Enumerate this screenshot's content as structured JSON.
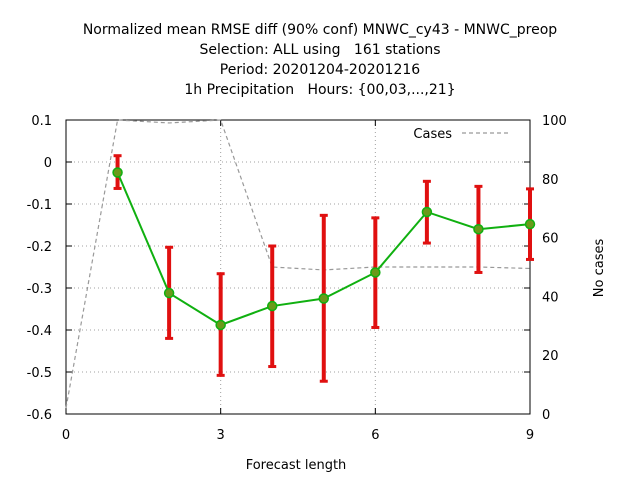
{
  "chart_data": {
    "type": "line",
    "title_lines": [
      "Normalized mean RMSE diff (90% conf) MNWC_cy43 - MNWC_preop",
      "Selection: ALL using   161 stations",
      "Period: 20201204-20201216",
      "1h Precipitation   Hours: {00,03,...,21}"
    ],
    "xlabel": "Forecast length",
    "ylabel": "",
    "y2label": "No cases",
    "xlim": [
      0,
      9
    ],
    "ylim": [
      -0.6,
      0.1
    ],
    "y2lim": [
      0,
      100
    ],
    "x_ticks": [
      0,
      3,
      6,
      9
    ],
    "x_tick_labels": [
      "0",
      "3",
      "6",
      "9"
    ],
    "y_ticks": [
      0.1,
      0,
      -0.1,
      -0.2,
      -0.3,
      -0.4,
      -0.5,
      -0.6
    ],
    "y_tick_labels": [
      "0.1",
      "0",
      "-0.1",
      "-0.2",
      "-0.3",
      "-0.4",
      "-0.5",
      "-0.6"
    ],
    "y2_ticks": [
      100,
      80,
      60,
      40,
      20,
      0
    ],
    "y2_tick_labels": [
      "100",
      "80",
      "60",
      "40",
      "20",
      "0"
    ],
    "grid": true,
    "legend_position": "top-right",
    "series": [
      {
        "kind": "line_with_errorbars",
        "color": "#10b010",
        "marker_color": "#6a9a1a",
        "errorbar_color": "#e01010",
        "x": [
          1,
          2,
          3,
          4,
          5,
          6,
          7,
          8,
          9
        ],
        "y": [
          -0.025,
          -0.312,
          -0.388,
          -0.343,
          -0.325,
          -0.263,
          -0.119,
          -0.16,
          -0.148
        ],
        "lower": [
          -0.063,
          -0.42,
          -0.508,
          -0.487,
          -0.522,
          -0.394,
          -0.193,
          -0.263,
          -0.232
        ],
        "upper": [
          0.015,
          -0.203,
          -0.266,
          -0.2,
          -0.127,
          -0.133,
          -0.046,
          -0.058,
          -0.064
        ]
      },
      {
        "name": "Cases",
        "kind": "cases",
        "axis": "y2",
        "color": "#999999",
        "x": [
          0,
          1,
          2,
          3,
          4,
          5,
          6,
          7,
          8,
          9
        ],
        "y": [
          2,
          100,
          99,
          100,
          50,
          49,
          50,
          50,
          50,
          49.5
        ]
      }
    ]
  }
}
